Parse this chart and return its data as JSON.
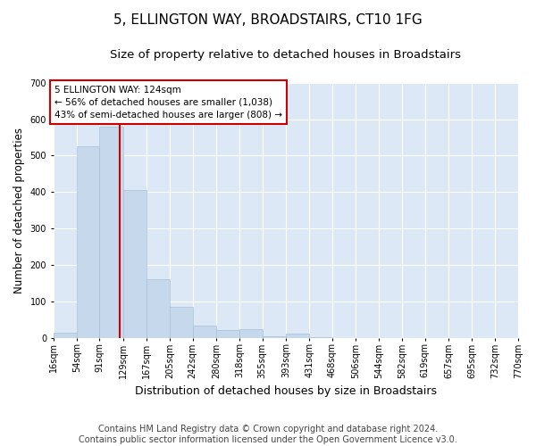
{
  "title": "5, ELLINGTON WAY, BROADSTAIRS, CT10 1FG",
  "subtitle": "Size of property relative to detached houses in Broadstairs",
  "xlabel": "Distribution of detached houses by size in Broadstairs",
  "ylabel": "Number of detached properties",
  "footer_lines": [
    "Contains HM Land Registry data © Crown copyright and database right 2024.",
    "Contains public sector information licensed under the Open Government Licence v3.0."
  ],
  "bar_edges": [
    16,
    54,
    91,
    129,
    167,
    205,
    242,
    280,
    318,
    355,
    393,
    431,
    468,
    506,
    544,
    582,
    619,
    657,
    695,
    732,
    770
  ],
  "bar_heights": [
    15,
    525,
    580,
    405,
    160,
    85,
    33,
    22,
    24,
    5,
    12,
    2,
    0,
    0,
    0,
    0,
    0,
    0,
    0,
    0
  ],
  "bar_color": "#c6d9ec",
  "bar_edgecolor": "#a8c0d8",
  "property_line_x": 124,
  "property_line_color": "#cc0000",
  "annotation_text": "5 ELLINGTON WAY: 124sqm\n← 56% of detached houses are smaller (1,038)\n43% of semi-detached houses are larger (808) →",
  "annotation_box_facecolor": "#ffffff",
  "annotation_box_edgecolor": "#cc0000",
  "ylim": [
    0,
    700
  ],
  "yticks": [
    0,
    100,
    200,
    300,
    400,
    500,
    600,
    700
  ],
  "fig_background_color": "#ffffff",
  "plot_background_color": "#dce8f5",
  "grid_color": "#ffffff",
  "title_fontsize": 11,
  "subtitle_fontsize": 9.5,
  "tick_label_fontsize": 7,
  "ylabel_fontsize": 8.5,
  "xlabel_fontsize": 9,
  "footer_fontsize": 7,
  "annotation_fontsize": 7.5
}
